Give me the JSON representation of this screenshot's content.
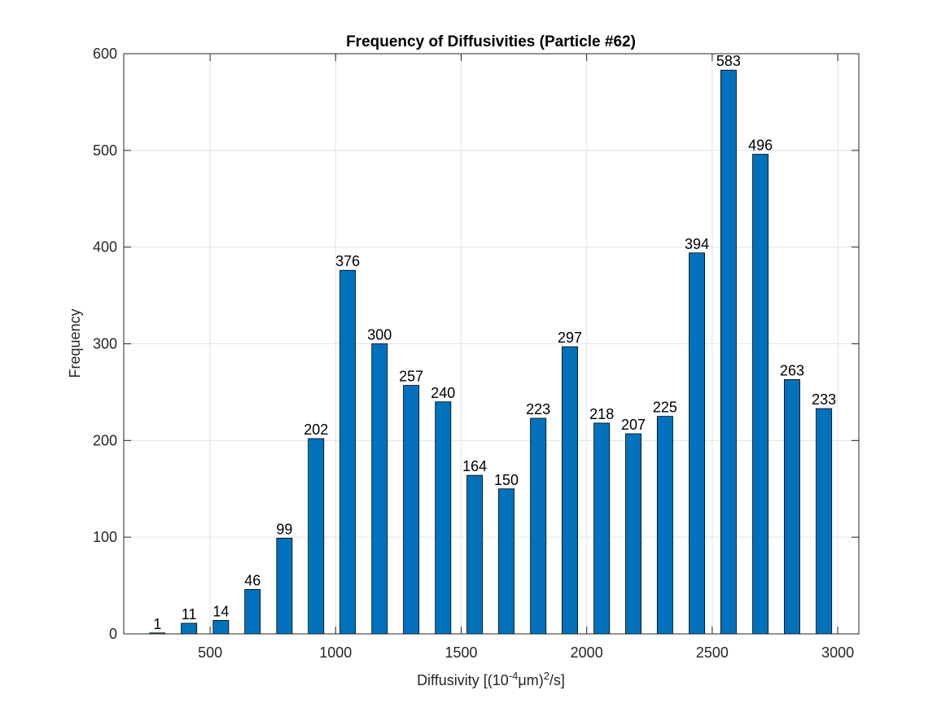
{
  "chart_data": {
    "type": "bar",
    "title": "Frequency of Diffusivities (Particle #62)",
    "xlabel": [
      "Diffusivity [(10",
      "-4",
      "μm)",
      "2",
      "/s]"
    ],
    "ylabel": "Frequency",
    "x": [
      290,
      416,
      543,
      669,
      796,
      922,
      1048,
      1175,
      1301,
      1428,
      1554,
      1680,
      1807,
      1933,
      2060,
      2186,
      2312,
      2439,
      2565,
      2692,
      2818,
      2945
    ],
    "values": [
      1,
      11,
      14,
      46,
      99,
      202,
      376,
      300,
      257,
      240,
      164,
      150,
      223,
      297,
      218,
      207,
      225,
      394,
      583,
      496,
      263,
      233
    ],
    "bar_width": 62,
    "color": "#0072bd",
    "xlim": [
      156,
      3084
    ],
    "xticks": [
      500,
      1000,
      1500,
      2000,
      2500,
      3000
    ],
    "ylim": [
      0,
      600
    ],
    "yticks": [
      0,
      100,
      200,
      300,
      400,
      500,
      600
    ],
    "grid": true
  }
}
